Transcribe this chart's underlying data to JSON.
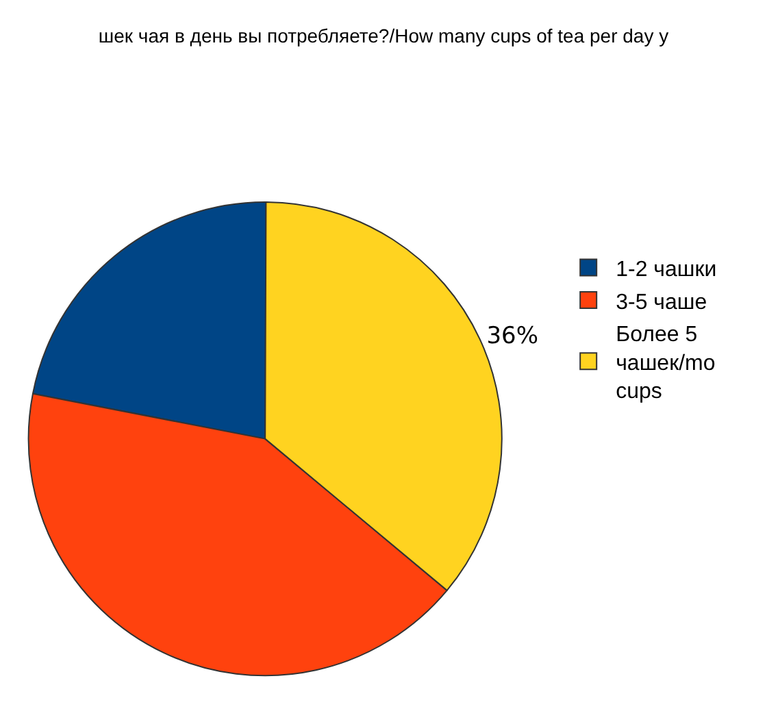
{
  "chart_data": {
    "type": "pie",
    "title": "шек чая в день вы потребляете?/How many cups of tea per day y",
    "categories": [
      "1-2 чашки",
      "3-5 чаше",
      "Более 5 чашек/mo cups"
    ],
    "values": [
      22,
      42,
      36
    ],
    "colors": [
      "#004586",
      "#ff420e",
      "#ffd320"
    ],
    "value_labels": [
      null,
      null,
      "36%"
    ],
    "legend": "right"
  }
}
